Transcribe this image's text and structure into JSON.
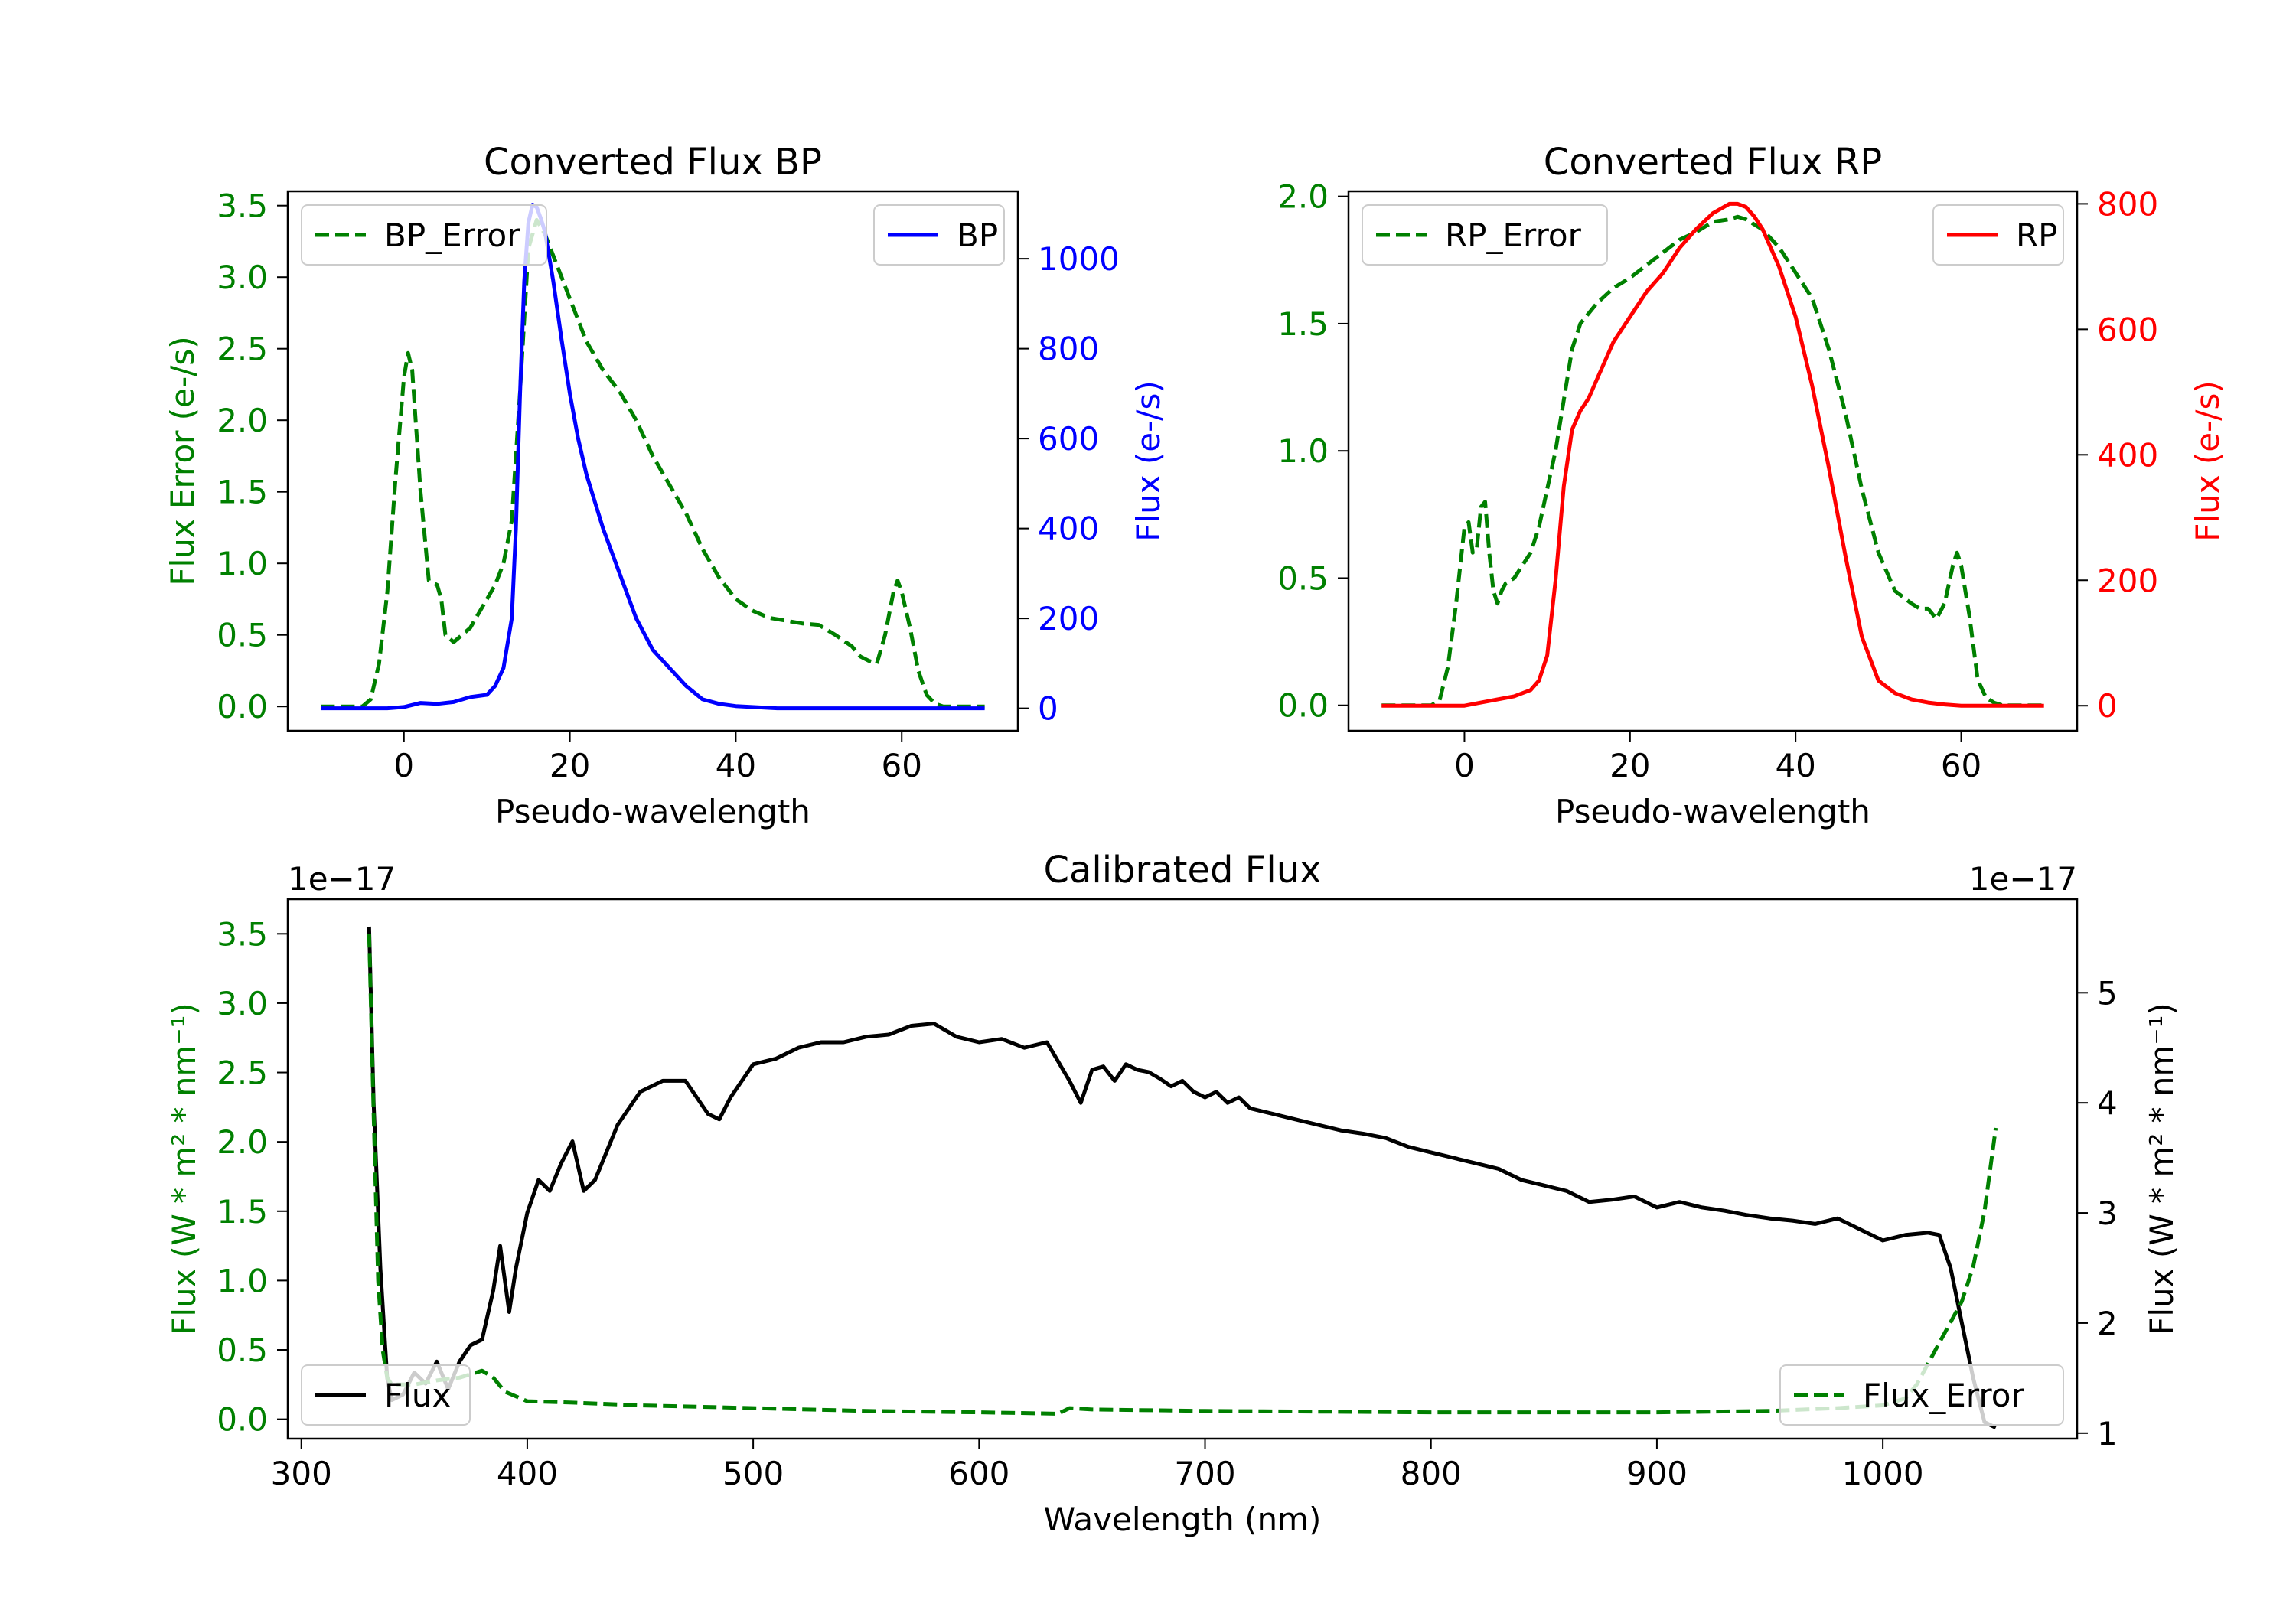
{
  "chart_data": [
    {
      "type": "line",
      "title": "Converted Flux BP",
      "xlabel": "Pseudo-wavelength",
      "xlim": [
        -14,
        74
      ],
      "x_ticks": [
        "0",
        "20",
        "40",
        "60"
      ],
      "left_axis": {
        "label": "Flux Error (e-/s)",
        "color": "#008000",
        "ylim": [
          -0.17,
          3.6
        ],
        "ticks": [
          "0.0",
          "0.5",
          "1.0",
          "1.5",
          "2.0",
          "2.5",
          "3.0",
          "3.5"
        ]
      },
      "right_axis": {
        "label": "Flux (e-/s)",
        "color": "#0000ff",
        "ylim": [
          -50,
          1150
        ],
        "ticks": [
          "0",
          "200",
          "400",
          "600",
          "800",
          "1000"
        ]
      },
      "series": [
        {
          "name": "BP_Error",
          "axis": "left",
          "color": "#008000",
          "dash": true,
          "x": [
            -10,
            -5,
            -4,
            -3,
            -2,
            -1,
            0,
            0.5,
            1,
            2,
            3,
            4,
            4.5,
            5,
            6,
            7,
            8,
            9,
            10,
            11,
            12,
            13,
            14,
            15,
            16,
            17,
            18,
            19,
            20,
            22,
            24,
            26,
            28,
            30,
            32,
            34,
            36,
            38,
            40,
            42,
            44,
            46,
            48,
            50,
            52,
            54,
            55,
            56,
            57,
            58,
            59,
            59.5,
            60,
            61,
            62,
            63,
            64,
            65,
            66,
            70
          ],
          "y": [
            0,
            0,
            0.05,
            0.3,
            0.8,
            1.6,
            2.3,
            2.47,
            2.35,
            1.5,
            0.88,
            0.85,
            0.75,
            0.5,
            0.45,
            0.5,
            0.55,
            0.65,
            0.75,
            0.85,
            1.0,
            1.3,
            2.2,
            3.2,
            3.4,
            3.3,
            3.15,
            3.0,
            2.85,
            2.55,
            2.35,
            2.2,
            2.0,
            1.75,
            1.55,
            1.35,
            1.1,
            0.9,
            0.75,
            0.67,
            0.62,
            0.6,
            0.58,
            0.57,
            0.5,
            0.42,
            0.35,
            0.32,
            0.3,
            0.5,
            0.8,
            0.88,
            0.8,
            0.55,
            0.25,
            0.08,
            0.02,
            0,
            0,
            0
          ]
        },
        {
          "name": "BP",
          "axis": "right",
          "color": "#0000ff",
          "dash": false,
          "x": [
            -10,
            -5,
            -2,
            0,
            2,
            4,
            6,
            8,
            10,
            11,
            12,
            13,
            13.5,
            14,
            14.5,
            15,
            15.5,
            16,
            16.5,
            17,
            18,
            19,
            20,
            21,
            22,
            24,
            26,
            28,
            30,
            32,
            34,
            36,
            38,
            40,
            45,
            50,
            55,
            60,
            65,
            70
          ],
          "y": [
            0,
            0,
            0,
            3,
            12,
            10,
            14,
            25,
            30,
            50,
            90,
            200,
            400,
            700,
            950,
            1080,
            1120,
            1115,
            1090,
            1060,
            950,
            820,
            700,
            600,
            520,
            400,
            300,
            200,
            130,
            90,
            50,
            20,
            10,
            5,
            0,
            0,
            0,
            0,
            0,
            0
          ]
        }
      ],
      "legends": [
        {
          "label": "BP_Error",
          "position": "upper-left"
        },
        {
          "label": "BP",
          "position": "upper-right"
        }
      ]
    },
    {
      "type": "line",
      "title": "Converted Flux RP",
      "xlabel": "Pseudo-wavelength",
      "xlim": [
        -14,
        74
      ],
      "x_ticks": [
        "0",
        "20",
        "40",
        "60"
      ],
      "left_axis": {
        "label": "Flux Error (e-/s)",
        "color": "#008000",
        "ylim": [
          -0.1,
          2.02
        ],
        "ticks": [
          "0.0",
          "0.5",
          "1.0",
          "1.5",
          "2.0"
        ]
      },
      "right_axis": {
        "label": "Flux (e-/s)",
        "color": "#ff0000",
        "ylim": [
          -40,
          820
        ],
        "ticks": [
          "0",
          "200",
          "400",
          "600",
          "800"
        ]
      },
      "series": [
        {
          "name": "RP_Error",
          "axis": "left",
          "color": "#008000",
          "dash": true,
          "x": [
            -10,
            -5,
            -4,
            -3,
            -2,
            -1,
            0,
            0.5,
            1,
            1.5,
            2,
            2.5,
            3,
            3.5,
            4,
            4.5,
            5,
            6,
            7,
            8,
            9,
            10,
            11,
            12,
            13,
            14,
            16,
            18,
            20,
            22,
            24,
            26,
            28,
            30,
            32,
            33,
            34,
            36,
            38,
            40,
            42,
            44,
            46,
            48,
            50,
            52,
            54,
            55,
            56,
            57,
            58,
            59,
            59.5,
            60,
            61,
            62,
            63,
            64,
            65,
            66,
            70
          ],
          "y": [
            0,
            0,
            0,
            0.02,
            0.15,
            0.4,
            0.7,
            0.72,
            0.6,
            0.62,
            0.78,
            0.8,
            0.6,
            0.45,
            0.4,
            0.45,
            0.48,
            0.5,
            0.55,
            0.6,
            0.7,
            0.85,
            1.0,
            1.2,
            1.4,
            1.5,
            1.58,
            1.64,
            1.68,
            1.73,
            1.78,
            1.83,
            1.86,
            1.9,
            1.91,
            1.92,
            1.91,
            1.87,
            1.8,
            1.7,
            1.6,
            1.4,
            1.15,
            0.85,
            0.6,
            0.45,
            0.4,
            0.38,
            0.38,
            0.34,
            0.4,
            0.55,
            0.6,
            0.55,
            0.35,
            0.1,
            0.03,
            0.01,
            0,
            0,
            0
          ]
        },
        {
          "name": "RP",
          "axis": "right",
          "color": "#ff0000",
          "dash": false,
          "x": [
            -10,
            -5,
            0,
            2,
            4,
            6,
            8,
            9,
            10,
            11,
            12,
            13,
            14,
            15,
            16,
            18,
            20,
            22,
            24,
            26,
            28,
            30,
            32,
            33,
            34,
            35,
            36,
            38,
            40,
            42,
            44,
            46,
            48,
            50,
            52,
            54,
            56,
            58,
            60,
            62,
            65,
            70
          ],
          "y": [
            0,
            0,
            0,
            5,
            10,
            15,
            25,
            40,
            80,
            200,
            350,
            440,
            470,
            490,
            520,
            580,
            620,
            660,
            690,
            730,
            760,
            785,
            800,
            800,
            795,
            780,
            760,
            700,
            620,
            510,
            380,
            240,
            110,
            40,
            20,
            10,
            5,
            2,
            0,
            0,
            0,
            0
          ]
        }
      ],
      "legends": [
        {
          "label": "RP_Error",
          "position": "upper-left"
        },
        {
          "label": "RP",
          "position": "upper-right"
        }
      ]
    },
    {
      "type": "line",
      "title": "Calibrated Flux",
      "xlabel": "Wavelength (nm)",
      "xlim": [
        294,
        1086
      ],
      "x_ticks": [
        "300",
        "400",
        "500",
        "600",
        "700",
        "800",
        "900",
        "1000"
      ],
      "left_axis": {
        "label": "Flux (W * m² * nm⁻¹)",
        "color": "#008000",
        "ylim": [
          -0.14,
          3.75
        ],
        "ticks": [
          "0.0",
          "0.5",
          "1.0",
          "1.5",
          "2.0",
          "2.5",
          "3.0",
          "3.5"
        ],
        "offset": "1e−17"
      },
      "right_axis": {
        "label": "Flux (W * m² * nm⁻¹)",
        "color": "#000000",
        "ylim": [
          0.95,
          5.85
        ],
        "ticks": [
          "1",
          "2",
          "3",
          "4",
          "5"
        ],
        "offset": "1e−17"
      },
      "series": [
        {
          "name": "Flux",
          "axis": "right",
          "color": "#000000",
          "dash": false,
          "x": [
            330,
            332,
            335,
            338,
            340,
            345,
            350,
            355,
            360,
            365,
            370,
            375,
            380,
            385,
            388,
            392,
            395,
            400,
            405,
            410,
            415,
            420,
            425,
            430,
            440,
            450,
            460,
            470,
            480,
            485,
            490,
            500,
            510,
            520,
            530,
            540,
            550,
            560,
            570,
            580,
            590,
            600,
            610,
            620,
            630,
            640,
            645,
            650,
            655,
            660,
            665,
            670,
            675,
            680,
            685,
            690,
            695,
            700,
            705,
            710,
            715,
            720,
            730,
            740,
            750,
            760,
            770,
            780,
            790,
            800,
            810,
            820,
            830,
            840,
            850,
            860,
            870,
            880,
            890,
            900,
            910,
            920,
            930,
            940,
            950,
            960,
            970,
            980,
            990,
            1000,
            1010,
            1020,
            1025,
            1030,
            1035,
            1040,
            1045,
            1050
          ],
          "y": [
            5.6,
            4.0,
            2.5,
            1.5,
            1.3,
            1.35,
            1.55,
            1.45,
            1.65,
            1.4,
            1.65,
            1.8,
            1.85,
            2.3,
            2.7,
            2.1,
            2.5,
            3.0,
            3.3,
            3.2,
            3.45,
            3.65,
            3.2,
            3.3,
            3.8,
            4.1,
            4.2,
            4.2,
            3.9,
            3.85,
            4.05,
            4.35,
            4.4,
            4.5,
            4.55,
            4.55,
            4.6,
            4.62,
            4.7,
            4.72,
            4.6,
            4.55,
            4.58,
            4.5,
            4.55,
            4.2,
            4.0,
            4.3,
            4.33,
            4.2,
            4.35,
            4.3,
            4.28,
            4.22,
            4.15,
            4.2,
            4.1,
            4.05,
            4.1,
            4.0,
            4.05,
            3.95,
            3.9,
            3.85,
            3.8,
            3.75,
            3.72,
            3.68,
            3.6,
            3.55,
            3.5,
            3.45,
            3.4,
            3.3,
            3.25,
            3.2,
            3.1,
            3.12,
            3.15,
            3.05,
            3.1,
            3.05,
            3.02,
            2.98,
            2.95,
            2.93,
            2.9,
            2.95,
            2.85,
            2.75,
            2.8,
            2.82,
            2.8,
            2.5,
            2.0,
            1.5,
            1.1,
            1.05
          ]
        },
        {
          "name": "Flux_Error",
          "axis": "left",
          "color": "#008000",
          "dash": true,
          "x": [
            330,
            332,
            334,
            336,
            338,
            340,
            350,
            360,
            370,
            380,
            385,
            390,
            400,
            420,
            450,
            500,
            550,
            600,
            635,
            640,
            650,
            700,
            800,
            900,
            950,
            980,
            1000,
            1010,
            1015,
            1020,
            1025,
            1030,
            1035,
            1040,
            1045,
            1050
          ],
          "y": [
            3.5,
            2.2,
            1.0,
            0.5,
            0.3,
            0.25,
            0.25,
            0.28,
            0.3,
            0.35,
            0.3,
            0.2,
            0.13,
            0.12,
            0.1,
            0.08,
            0.06,
            0.05,
            0.04,
            0.08,
            0.07,
            0.06,
            0.05,
            0.05,
            0.06,
            0.08,
            0.1,
            0.15,
            0.25,
            0.4,
            0.55,
            0.7,
            0.85,
            1.1,
            1.5,
            2.1
          ]
        }
      ],
      "legends": [
        {
          "label": "Flux",
          "position": "lower-left"
        },
        {
          "label": "Flux_Error",
          "position": "lower-right"
        }
      ]
    }
  ]
}
